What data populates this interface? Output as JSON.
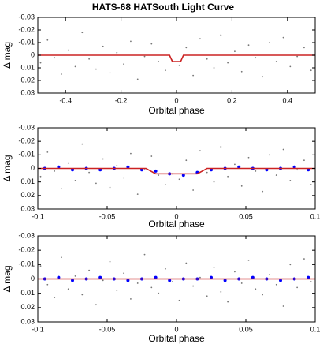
{
  "chart_data": [
    {
      "type": "scatter",
      "title": "HATS-68 HATSouth Light Curve",
      "xlabel": "Orbital phase",
      "ylabel": "Δ mag",
      "xlim": [
        -0.5,
        0.5
      ],
      "xticks": [
        -0.4,
        -0.2,
        0,
        0.2,
        0.4
      ],
      "ylim": [
        0.03,
        -0.03
      ],
      "yticks": [
        -0.03,
        -0.02,
        -0.01,
        0,
        0.01,
        0.02,
        0.03
      ],
      "series": [
        {
          "type": "scatter",
          "color": "#777777",
          "x": [
            -0.49,
            -0.465,
            -0.44,
            -0.415,
            -0.39,
            -0.365,
            -0.34,
            -0.315,
            -0.29,
            -0.265,
            -0.24,
            -0.215,
            -0.19,
            -0.165,
            -0.14,
            -0.115,
            -0.09,
            -0.065,
            -0.04,
            -0.015,
            0.01,
            0.035,
            0.06,
            0.085,
            0.11,
            0.135,
            0.16,
            0.185,
            0.21,
            0.235,
            0.26,
            0.285,
            0.31,
            0.335,
            0.36,
            0.385,
            0.41,
            0.435,
            0.46,
            0.485
          ],
          "values": [
            0.006,
            -0.012,
            0.002,
            0.015,
            -0.004,
            0.009,
            -0.018,
            0.003,
            0.011,
            -0.007,
            0.014,
            -0.002,
            0.007,
            -0.011,
            0.019,
            0.001,
            -0.009,
            0.005,
            0.012,
            0.004,
            0.008,
            -0.006,
            0.016,
            -0.013,
            0.003,
            0.01,
            -0.016,
            0.006,
            -0.003,
            0.013,
            -0.008,
            0.002,
            0.017,
            -0.01,
            0.005,
            -0.014,
            0.009,
            0.001,
            -0.006,
            0.012
          ]
        },
        {
          "type": "line",
          "color": "#cc2222",
          "x": [
            -0.5,
            -0.025,
            -0.015,
            0.015,
            0.025,
            0.5
          ],
          "values": [
            0,
            0,
            0.005,
            0.005,
            0,
            0
          ]
        }
      ]
    },
    {
      "type": "scatter",
      "xlabel": "Orbital phase",
      "ylabel": "Δ mag",
      "xlim": [
        -0.1,
        0.1
      ],
      "xticks": [
        -0.1,
        -0.05,
        0,
        0.05,
        0.1
      ],
      "ylim": [
        0.03,
        -0.03
      ],
      "yticks": [
        -0.03,
        -0.02,
        -0.01,
        0,
        0.01,
        0.02,
        0.03
      ],
      "series": [
        {
          "type": "scatter",
          "color": "#777777",
          "x": [
            -0.098,
            -0.093,
            -0.088,
            -0.083,
            -0.078,
            -0.073,
            -0.068,
            -0.063,
            -0.058,
            -0.053,
            -0.048,
            -0.043,
            -0.038,
            -0.033,
            -0.028,
            -0.023,
            -0.018,
            -0.013,
            -0.008,
            -0.003,
            0.002,
            0.007,
            0.012,
            0.017,
            0.022,
            0.027,
            0.032,
            0.037,
            0.042,
            0.047,
            0.052,
            0.057,
            0.062,
            0.067,
            0.072,
            0.077,
            0.082,
            0.087,
            0.092,
            0.097
          ],
          "values": [
            0.006,
            -0.012,
            0.002,
            0.015,
            -0.004,
            0.009,
            -0.018,
            0.003,
            0.011,
            -0.007,
            0.014,
            -0.002,
            0.007,
            -0.011,
            0.019,
            0.001,
            -0.009,
            0.005,
            0.012,
            0.004,
            0.008,
            -0.006,
            0.016,
            -0.013,
            0.003,
            0.01,
            -0.016,
            0.006,
            -0.003,
            0.013,
            -0.008,
            0.002,
            0.017,
            -0.01,
            0.005,
            -0.014,
            0.009,
            0.001,
            -0.006,
            0.012
          ]
        },
        {
          "type": "scatter",
          "color": "#0000ff",
          "x": [
            -0.095,
            -0.085,
            -0.075,
            -0.065,
            -0.055,
            -0.045,
            -0.035,
            -0.025,
            -0.015,
            -0.005,
            0.005,
            0.015,
            0.025,
            0.035,
            0.045,
            0.055,
            0.065,
            0.075,
            0.085,
            0.095
          ],
          "values": [
            0,
            -0.001,
            0.001,
            0,
            0.001,
            0,
            -0.001,
            0.001,
            0.002,
            0.004,
            0.005,
            0.003,
            0.001,
            0,
            -0.001,
            0,
            0.001,
            0,
            -0.001,
            0.001
          ]
        },
        {
          "type": "line",
          "color": "#cc2222",
          "x": [
            -0.1,
            -0.022,
            -0.015,
            0.015,
            0.022,
            0.1
          ],
          "values": [
            0,
            0,
            0.004,
            0.004,
            0,
            0
          ]
        }
      ]
    },
    {
      "type": "scatter",
      "xlabel": "Orbital phase",
      "ylabel": "Δ mag",
      "xlim": [
        -0.1,
        0.1
      ],
      "xticks": [
        -0.1,
        -0.05,
        0,
        0.05,
        0.1
      ],
      "ylim": [
        0.03,
        -0.03
      ],
      "yticks": [
        -0.03,
        -0.02,
        -0.01,
        0,
        0.01,
        0.02,
        0.03
      ],
      "series": [
        {
          "type": "scatter",
          "color": "#777777",
          "x": [
            -0.098,
            -0.093,
            -0.088,
            -0.083,
            -0.078,
            -0.073,
            -0.068,
            -0.063,
            -0.058,
            -0.053,
            -0.048,
            -0.043,
            -0.038,
            -0.033,
            -0.028,
            -0.023,
            -0.018,
            -0.013,
            -0.008,
            -0.003,
            0.002,
            0.007,
            0.012,
            0.017,
            0.022,
            0.027,
            0.032,
            0.037,
            0.042,
            0.047,
            0.052,
            0.057,
            0.062,
            0.067,
            0.072,
            0.077,
            0.082,
            0.087,
            0.092,
            0.097
          ],
          "values": [
            -0.009,
            0.004,
            0.013,
            -0.015,
            0.007,
            -0.002,
            0.011,
            -0.006,
            0.018,
            0.001,
            -0.012,
            0.008,
            -0.004,
            0.014,
            0.003,
            -0.017,
            0.006,
            0.01,
            -0.007,
            0.002,
            0.015,
            -0.011,
            0.005,
            -0.001,
            0.012,
            -0.008,
            0.009,
            0.016,
            -0.005,
            0.003,
            -0.013,
            0.007,
            0.011,
            -0.003,
            0.004,
            0.019,
            -0.01,
            0.006,
            -0.014,
            0.002
          ]
        },
        {
          "type": "scatter",
          "color": "#0000ff",
          "x": [
            -0.095,
            -0.085,
            -0.075,
            -0.065,
            -0.055,
            -0.045,
            -0.035,
            -0.025,
            -0.015,
            -0.005,
            0.005,
            0.015,
            0.025,
            0.035,
            0.045,
            0.055,
            0.065,
            0.075,
            0.085,
            0.095
          ],
          "values": [
            0,
            -0.001,
            0.001,
            0,
            -0.001,
            0,
            0.001,
            0,
            -0.001,
            0.001,
            0,
            0,
            -0.001,
            0.001,
            0,
            -0.001,
            0,
            0.001,
            0,
            -0.001
          ]
        },
        {
          "type": "line",
          "color": "#cc2222",
          "x": [
            -0.1,
            0.1
          ],
          "values": [
            0,
            0
          ]
        }
      ]
    }
  ]
}
